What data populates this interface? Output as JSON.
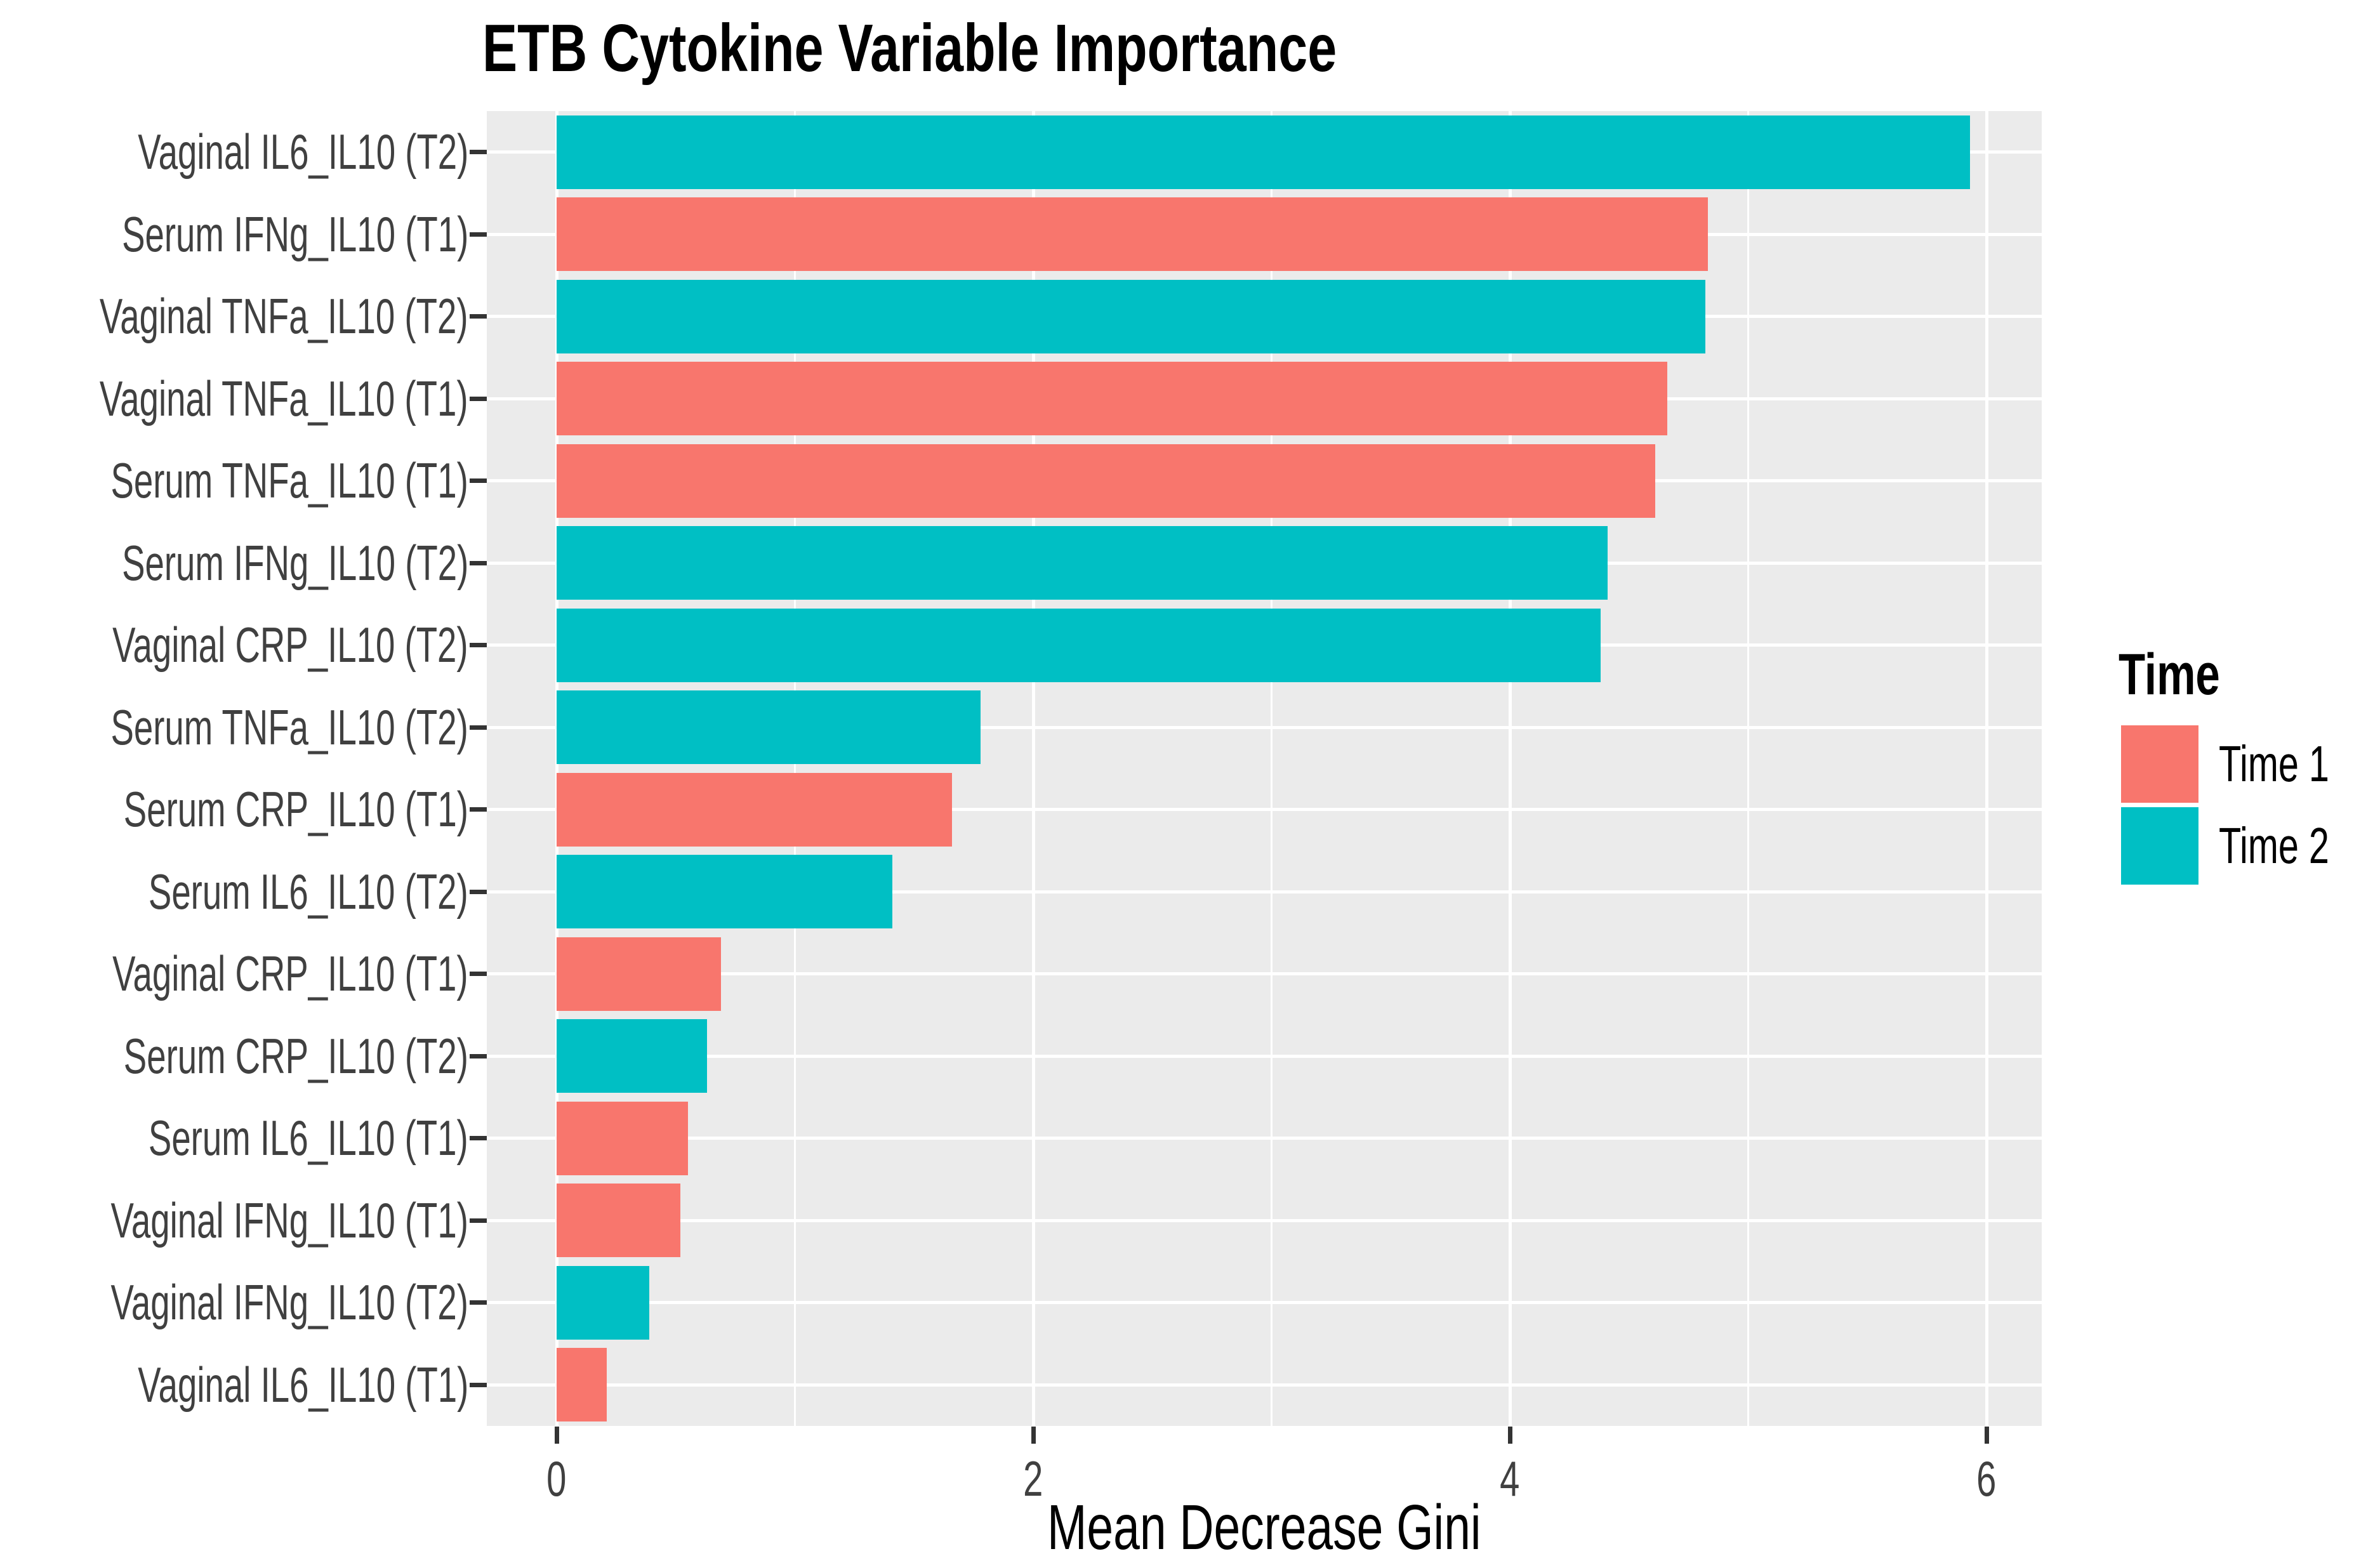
{
  "chart_data": {
    "type": "bar",
    "orientation": "horizontal",
    "title": "ETB Cytokine Variable Importance",
    "xlabel": "Mean Decrease Gini",
    "ylabel": "",
    "xlim": [
      -0.3,
      6.23
    ],
    "x_ticks": [
      0,
      2,
      4,
      6
    ],
    "x_minor_gridlines": [
      1,
      3,
      5
    ],
    "grid": "on",
    "legend": {
      "title": "Time",
      "position": "right",
      "entries": [
        {
          "label": "Time 1",
          "color": "#F8766D"
        },
        {
          "label": "Time 2",
          "color": "#00BFC4"
        }
      ]
    },
    "bars": [
      {
        "category": "Vaginal IL6_IL10 (T2)",
        "value": 5.93,
        "time": "Time 2"
      },
      {
        "category": "Serum IFNg_IL10 (T1)",
        "value": 4.83,
        "time": "Time 1"
      },
      {
        "category": "Vaginal TNFa_IL10 (T2)",
        "value": 4.82,
        "time": "Time 2"
      },
      {
        "category": "Vaginal TNFa_IL10 (T1)",
        "value": 4.66,
        "time": "Time 1"
      },
      {
        "category": "Serum TNFa_IL10 (T1)",
        "value": 4.61,
        "time": "Time 1"
      },
      {
        "category": "Serum IFNg_IL10 (T2)",
        "value": 4.41,
        "time": "Time 2"
      },
      {
        "category": "Vaginal CRP_IL10 (T2)",
        "value": 4.38,
        "time": "Time 2"
      },
      {
        "category": "Serum TNFa_IL10 (T2)",
        "value": 1.78,
        "time": "Time 2"
      },
      {
        "category": "Serum CRP_IL10 (T1)",
        "value": 1.66,
        "time": "Time 1"
      },
      {
        "category": "Serum IL6_IL10 (T2)",
        "value": 1.41,
        "time": "Time 2"
      },
      {
        "category": "Vaginal CRP_IL10 (T1)",
        "value": 0.69,
        "time": "Time 1"
      },
      {
        "category": "Serum CRP_IL10 (T2)",
        "value": 0.63,
        "time": "Time 2"
      },
      {
        "category": "Serum IL6_IL10 (T1)",
        "value": 0.55,
        "time": "Time 1"
      },
      {
        "category": "Vaginal IFNg_IL10 (T1)",
        "value": 0.52,
        "time": "Time 1"
      },
      {
        "category": "Vaginal IFNg_IL10 (T2)",
        "value": 0.39,
        "time": "Time 2"
      },
      {
        "category": "Vaginal IL6_IL10 (T1)",
        "value": 0.21,
        "time": "Time 1"
      }
    ],
    "colors": {
      "time1": "#F8766D",
      "time2": "#00BFC4",
      "panel_background": "#EBEBEB",
      "gridline": "#FFFFFF",
      "axis_text": "#404040",
      "tick_mark": "#333333",
      "title_text": "#000000"
    }
  }
}
